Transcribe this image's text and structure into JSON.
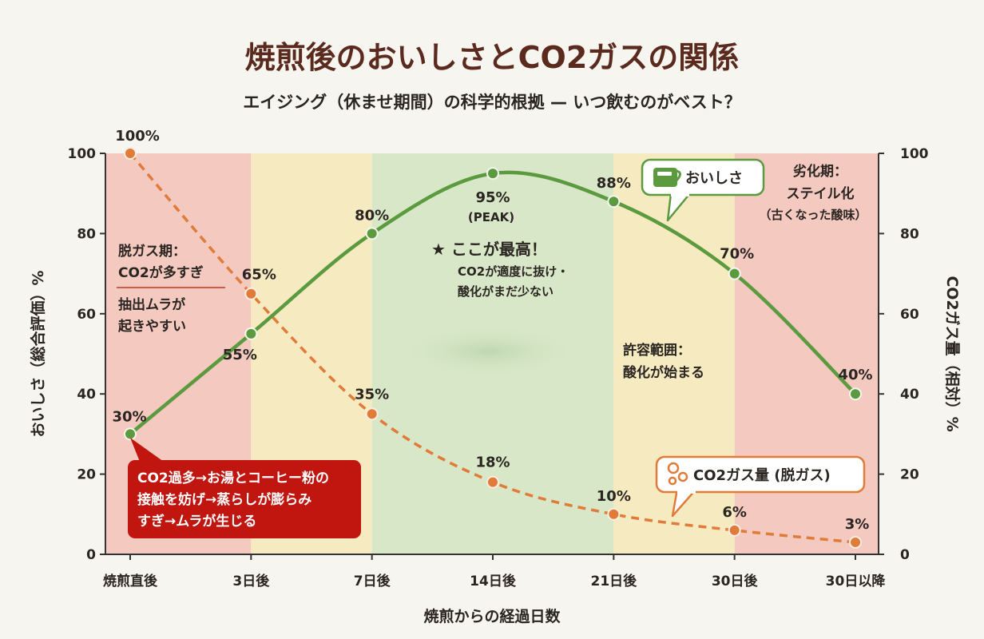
{
  "header": {
    "title": "焼煎後のおいしさとCO2ガスの関係",
    "subtitle": "エイジング（休ませ期間）の科学的根拠 — いつ飲むのがベスト？"
  },
  "chart_data": {
    "type": "line",
    "categories": [
      "焼煎直後",
      "3日後",
      "7日後",
      "14日後",
      "21日後",
      "30日後",
      "30日以降"
    ],
    "xlabel": "焼煎からの経過日数",
    "ylabel_left": "おいしさ（総合評価）%",
    "ylabel_right": "CO2ガス量（相対）%",
    "ylim": [
      0,
      100
    ],
    "yticks": [
      0,
      20,
      40,
      60,
      80,
      100
    ],
    "series": [
      {
        "name": "おいしさ",
        "values": [
          30,
          55,
          80,
          95,
          88,
          70,
          40
        ],
        "labels": [
          "30%",
          "55%",
          "80%",
          "95%",
          "88%",
          "70%",
          "40%"
        ],
        "color": "#5b9a3f",
        "style": "solid"
      },
      {
        "name": "CO2ガス量 (脱ガス)",
        "values": [
          100,
          65,
          35,
          18,
          10,
          6,
          3
        ],
        "labels": [
          "100%",
          "65%",
          "35%",
          "18%",
          "10%",
          "6%",
          "3%"
        ],
        "color": "#e07b39",
        "style": "dashed"
      }
    ],
    "bands": [
      {
        "from": 0,
        "to": 1,
        "color": "#f3c9c0"
      },
      {
        "from": 1,
        "to": 2,
        "color": "#f6ebc0"
      },
      {
        "from": 2,
        "to": 4,
        "color": "#d7e7c7"
      },
      {
        "from": 4,
        "to": 5,
        "color": "#f6ebc0"
      },
      {
        "from": 5,
        "to": 6,
        "color": "#f3c9c0"
      }
    ],
    "peak_label": "(PEAK)",
    "annotations": {
      "degas_title": "脱ガス期：",
      "degas_line1": "CO2が多すぎ",
      "degas_line2": "抽出ムラが",
      "degas_line3": "起きやすい",
      "best_title": "★ ここが最高！",
      "best_line1": "CO2が適度に抜け・",
      "best_line2": "酸化がまだ少ない",
      "allow_line1": "許容範囲：",
      "allow_line2": "酸化が始まる",
      "decline_line1": "劣化期：",
      "decline_line2": "ステイル化",
      "decline_line3": "（古くなった酸味）",
      "callout_line1": "CO2過多→お湯とコーヒー粉の",
      "callout_line2": "接触を妨げ→蒸らしが膨らみ",
      "callout_line3": "すぎ→ムラが生じる"
    },
    "legend": {
      "taste": "おいしさ",
      "co2": "CO2ガス量 (脱ガス)"
    }
  }
}
